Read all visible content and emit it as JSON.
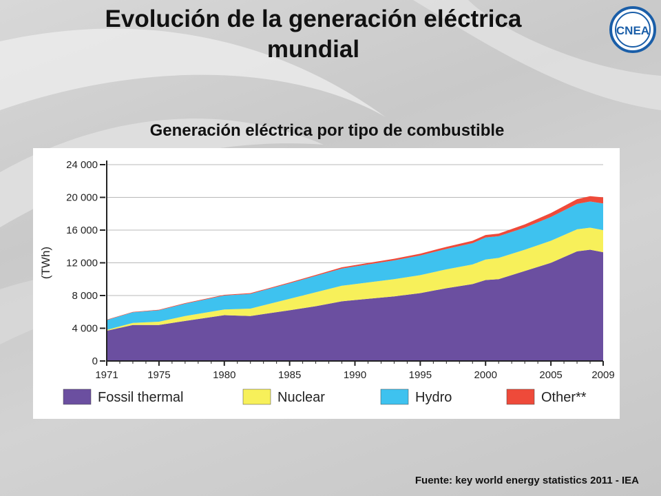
{
  "slide": {
    "title_line1": "Evolución de la generación eléctrica",
    "title_line2": "mundial",
    "subtitle": "Generación eléctrica por tipo de combustible",
    "source": "Fuente: key world energy statistics 2011 - IEA",
    "logo_text": "CNEA"
  },
  "colors": {
    "fossil": "#6b4fa0",
    "nuclear": "#f7f05a",
    "hydro": "#3ec2ef",
    "other": "#ee4a3a"
  },
  "chart_data": {
    "type": "area",
    "stacked": true,
    "title": "",
    "xlabel": "",
    "ylabel": "(TWh)",
    "ylim": [
      0,
      24000
    ],
    "xlim": [
      1971,
      2009
    ],
    "yticks": [
      0,
      4000,
      8000,
      12000,
      16000,
      20000,
      24000
    ],
    "ytick_labels": [
      "0",
      "4 000",
      "8 000",
      "12 000",
      "16 000",
      "20 000",
      "24 000"
    ],
    "xticks": [
      1971,
      1975,
      1980,
      1985,
      1990,
      1995,
      2000,
      2005,
      2009
    ],
    "xtick_labels": [
      "1971",
      "1975",
      "1980",
      "1985",
      "1990",
      "1995",
      "2000",
      "2005",
      "2009"
    ],
    "legend_position": "bottom",
    "x": [
      1971,
      1973,
      1975,
      1977,
      1980,
      1982,
      1985,
      1987,
      1989,
      1991,
      1993,
      1995,
      1997,
      1999,
      2000,
      2001,
      2003,
      2005,
      2007,
      2008,
      2009
    ],
    "series": [
      {
        "name": "Fossil thermal",
        "values": [
          3700,
          4400,
          4400,
          4900,
          5600,
          5500,
          6200,
          6700,
          7300,
          7600,
          7900,
          8300,
          8900,
          9400,
          9900,
          10000,
          11000,
          12000,
          13400,
          13600,
          13300
        ]
      },
      {
        "name": "Nuclear",
        "values": [
          100,
          250,
          400,
          600,
          700,
          900,
          1400,
          1700,
          1900,
          2000,
          2100,
          2200,
          2300,
          2400,
          2500,
          2600,
          2600,
          2700,
          2700,
          2700,
          2700
        ]
      },
      {
        "name": "Hydro",
        "values": [
          1200,
          1300,
          1400,
          1500,
          1700,
          1800,
          1900,
          2000,
          2100,
          2200,
          2300,
          2400,
          2500,
          2600,
          2700,
          2650,
          2700,
          2900,
          3100,
          3200,
          3250
        ]
      },
      {
        "name": "Other**",
        "values": [
          50,
          50,
          60,
          70,
          80,
          90,
          100,
          120,
          150,
          180,
          200,
          220,
          250,
          300,
          300,
          320,
          400,
          480,
          580,
          650,
          750
        ]
      }
    ],
    "legend": [
      "Fossil thermal",
      "Nuclear",
      "Hydro",
      "Other**"
    ]
  }
}
